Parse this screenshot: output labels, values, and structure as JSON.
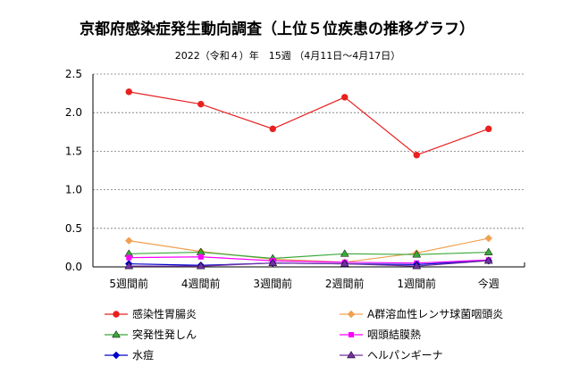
{
  "chart_data": {
    "type": "line",
    "title": "京都府感染症発生動向調査（上位５位疾患の推移グラフ）",
    "subtitle": "2022（令和４）年　15週 （4月11日～4月17日）",
    "categories": [
      "5週間前",
      "4週間前",
      "3週間前",
      "2週間前",
      "1週間前",
      "今週"
    ],
    "ylim": [
      0,
      2.5
    ],
    "yticks": [
      "0.0",
      "0.5",
      "1.0",
      "1.5",
      "2.0",
      "2.5"
    ],
    "ytick_values": [
      0,
      0.5,
      1.0,
      1.5,
      2.0,
      2.5
    ],
    "grid": "horizontal dashed",
    "legend_position": "bottom",
    "series": [
      {
        "name": "感染性胃腸炎",
        "color": "#e8201f",
        "marker": "circle",
        "values": [
          2.27,
          2.11,
          1.79,
          2.2,
          1.45,
          1.79
        ]
      },
      {
        "name": "A群溶血性レンサ球菌咽頭炎",
        "color": "#f0a050",
        "marker": "diamond",
        "values": [
          0.34,
          0.2,
          0.1,
          0.06,
          0.18,
          0.37
        ]
      },
      {
        "name": "突発性発しん",
        "color": "#3aa83a",
        "marker": "triangle",
        "values": [
          0.17,
          0.19,
          0.11,
          0.17,
          0.16,
          0.19
        ]
      },
      {
        "name": "咽頭結膜熱",
        "color": "#ff00ff",
        "marker": "square",
        "values": [
          0.12,
          0.13,
          0.08,
          0.06,
          0.05,
          0.09
        ]
      },
      {
        "name": "水痘",
        "color": "#0000cc",
        "marker": "diamond",
        "values": [
          0.04,
          0.02,
          0.05,
          0.04,
          0.03,
          0.08
        ]
      },
      {
        "name": "ヘルパンギーナ",
        "color": "#7030a0",
        "marker": "triangle",
        "values": [
          0.01,
          0.01,
          0.05,
          0.04,
          0.01,
          0.08
        ]
      }
    ]
  }
}
